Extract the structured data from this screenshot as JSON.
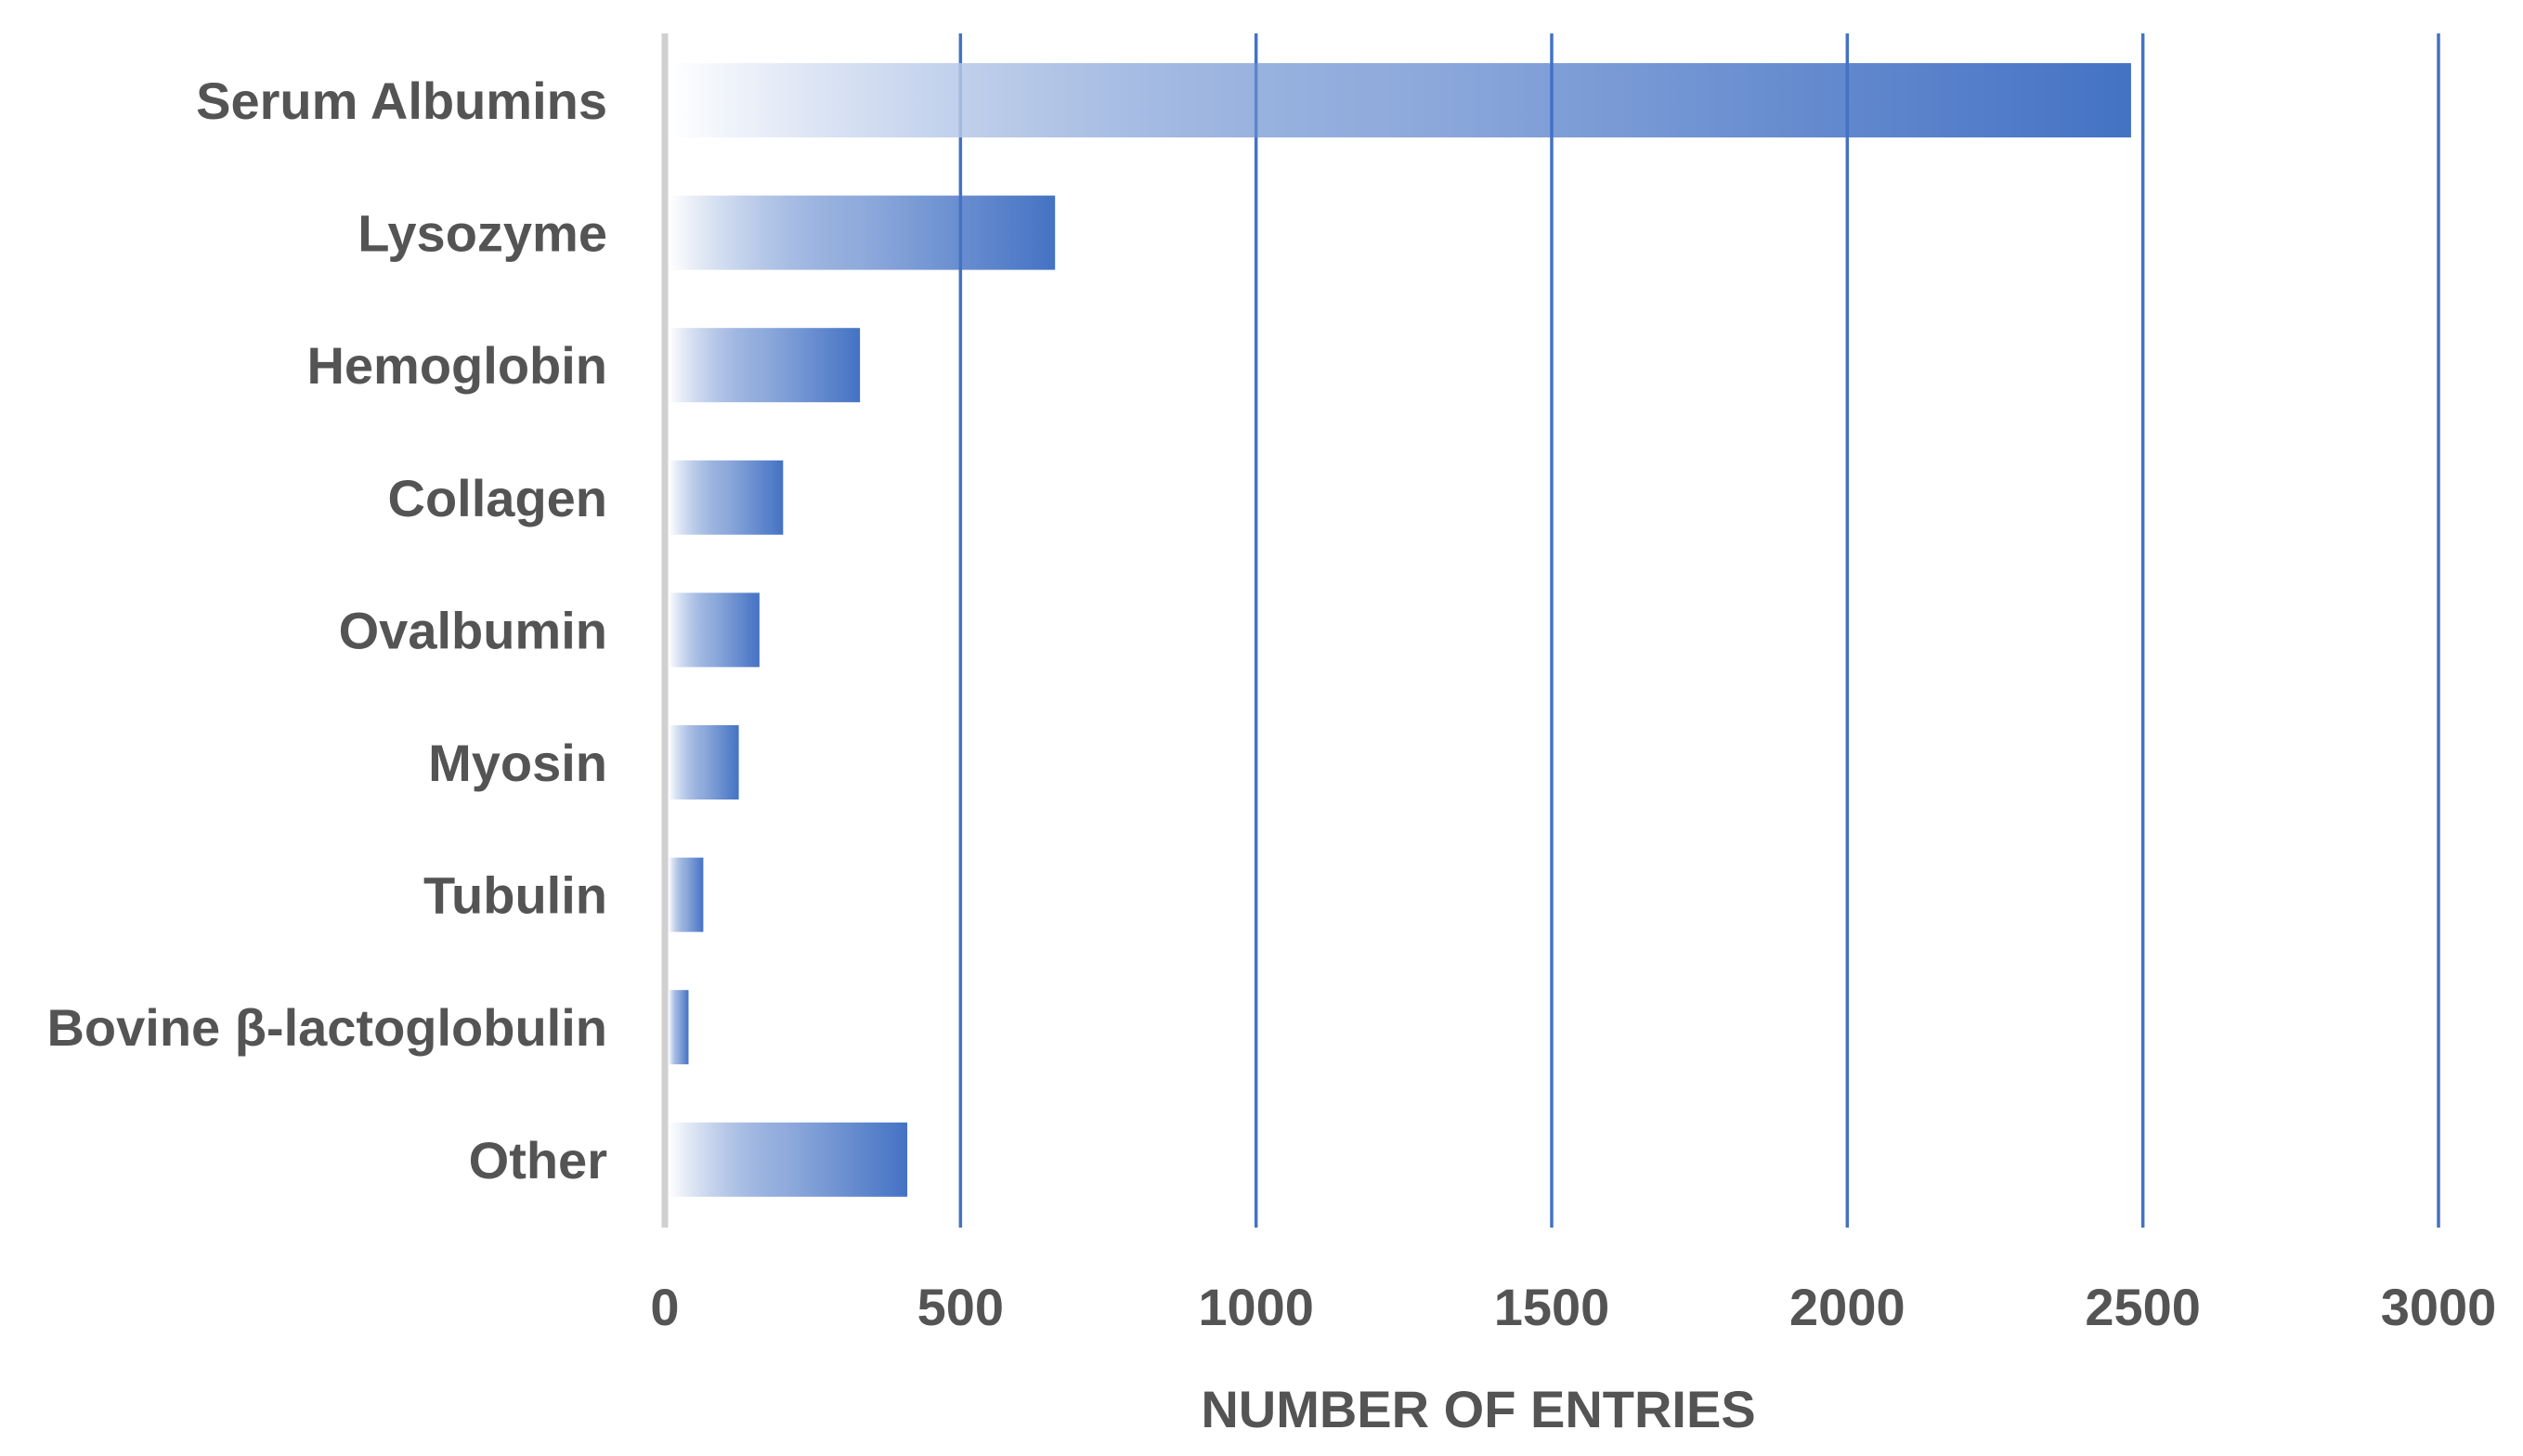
{
  "chart_data": {
    "type": "bar",
    "orientation": "horizontal",
    "categories": [
      "Serum Albumins",
      "Lysozyme",
      "Hemoglobin",
      "Collagen",
      "Ovalbumin",
      "Myosin",
      "Tubulin",
      "Bovine β-lactoglobulin",
      "Other"
    ],
    "values": [
      2480,
      660,
      330,
      200,
      160,
      125,
      65,
      40,
      410
    ],
    "xlabel": "NUMBER OF ENTRIES",
    "ylabel": "",
    "xlim": [
      0,
      3000
    ],
    "xticks": [
      "0",
      "500",
      "1000",
      "1500",
      "2000",
      "2500",
      "3000"
    ],
    "grid": true,
    "legend": "none",
    "colors": {
      "bar_end": "#4472c4",
      "bar_start": "#ffffff",
      "gridline": "#4472c4",
      "text": "#545454",
      "axis": "#d0d0d0"
    }
  }
}
